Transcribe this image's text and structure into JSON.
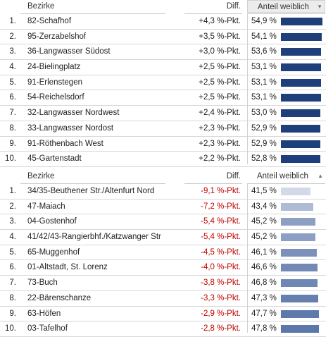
{
  "top_table": {
    "header": {
      "bezirke": "Bezirke",
      "diff": "Diff.",
      "anteil": "Anteil weiblich",
      "sort_icon": "▼"
    },
    "rows": [
      {
        "rank": "1.",
        "name": "82-Schafhof",
        "diff": "+4,3 %-Pkt.",
        "pct": "54,9 %",
        "value": 54.9
      },
      {
        "rank": "2.",
        "name": "95-Zerzabelshof",
        "diff": "+3,5 %-Pkt.",
        "pct": "54,1 %",
        "value": 54.1
      },
      {
        "rank": "3.",
        "name": "36-Langwasser Südost",
        "diff": "+3,0 %-Pkt.",
        "pct": "53,6 %",
        "value": 53.6
      },
      {
        "rank": "4.",
        "name": "24-Bielingplatz",
        "diff": "+2,5 %-Pkt.",
        "pct": "53,1 %",
        "value": 53.1
      },
      {
        "rank": "5.",
        "name": "91-Erlenstegen",
        "diff": "+2,5 %-Pkt.",
        "pct": "53,1 %",
        "value": 53.1
      },
      {
        "rank": "6.",
        "name": "54-Reichelsdorf",
        "diff": "+2,5 %-Pkt.",
        "pct": "53,1 %",
        "value": 53.1
      },
      {
        "rank": "7.",
        "name": "32-Langwasser Nordwest",
        "diff": "+2,4 %-Pkt.",
        "pct": "53,0 %",
        "value": 53.0
      },
      {
        "rank": "8.",
        "name": "33-Langwasser Nordost",
        "diff": "+2,3 %-Pkt.",
        "pct": "52,9 %",
        "value": 52.9
      },
      {
        "rank": "9.",
        "name": "91-Röthenbach West",
        "diff": "+2,3 %-Pkt.",
        "pct": "52,9 %",
        "value": 52.9
      },
      {
        "rank": "10.",
        "name": "45-Gartenstadt",
        "diff": "+2,2 %-Pkt.",
        "pct": "52,8 %",
        "value": 52.8
      }
    ]
  },
  "bottom_table": {
    "header": {
      "bezirke": "Bezirke",
      "diff": "Diff.",
      "anteil": "Anteil weiblich",
      "sort_icon": "▲"
    },
    "rows": [
      {
        "rank": "1.",
        "name": "34/35-Beuthener Str./Altenfurt Nord",
        "diff": "-9,1 %-Pkt.",
        "pct": "41,5 %",
        "value": 41.5
      },
      {
        "rank": "2.",
        "name": "47-Maiach",
        "diff": "-7,2 %-Pkt.",
        "pct": "43,4 %",
        "value": 43.4
      },
      {
        "rank": "3.",
        "name": "04-Gostenhof",
        "diff": "-5,4 %-Pkt.",
        "pct": "45,2 %",
        "value": 45.2
      },
      {
        "rank": "4.",
        "name": "41/42/43-Rangierbhf./Katzwanger Str",
        "diff": "-5,4 %-Pkt.",
        "pct": "45,2 %",
        "value": 45.2
      },
      {
        "rank": "5.",
        "name": "65-Muggenhof",
        "diff": "-4,5 %-Pkt.",
        "pct": "46,1 %",
        "value": 46.1
      },
      {
        "rank": "6.",
        "name": "01-Altstadt, St. Lorenz",
        "diff": "-4,0 %-Pkt.",
        "pct": "46,6 %",
        "value": 46.6
      },
      {
        "rank": "7.",
        "name": "73-Buch",
        "diff": "-3,8 %-Pkt.",
        "pct": "46,8 %",
        "value": 46.8
      },
      {
        "rank": "8.",
        "name": "22-Bärenschanze",
        "diff": "-3,3 %-Pkt.",
        "pct": "47,3 %",
        "value": 47.3
      },
      {
        "rank": "9.",
        "name": "63-Höfen",
        "diff": "-2,9 %-Pkt.",
        "pct": "47,7 %",
        "value": 47.7
      },
      {
        "rank": "10.",
        "name": "03-Tafelhof",
        "diff": "-2,8 %-Pkt.",
        "pct": "47,8 %",
        "value": 47.8
      }
    ]
  },
  "colors": {
    "bar_top": "#1f3f7a",
    "bar_bottom_light": "#d3d9e6",
    "bar_bottom_dark": "#5c77aa",
    "negative_text": "#c00000"
  }
}
